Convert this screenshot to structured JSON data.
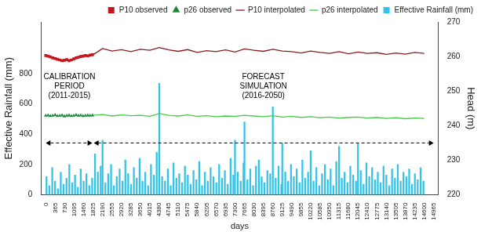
{
  "chart_data": {
    "type": "bar",
    "x_label": "days",
    "y_label": "Effective Rainfall (mm)",
    "y2_label": "Head (m)",
    "xlim": [
      0,
      14965
    ],
    "xticks": [
      0,
      365,
      730,
      1095,
      1460,
      1825,
      2190,
      2555,
      2920,
      3285,
      3650,
      4015,
      4380,
      4745,
      5110,
      5475,
      5840,
      6205,
      6570,
      6935,
      7300,
      7665,
      8030,
      8395,
      8760,
      9125,
      9490,
      9855,
      10220,
      10585,
      10950,
      11315,
      11680,
      12045,
      12410,
      12775,
      13140,
      13505,
      13870,
      14235,
      14600,
      14965
    ],
    "ylim": [
      0,
      1140
    ],
    "yticks": [
      0,
      200,
      400,
      600,
      800
    ],
    "y2lim": [
      220,
      270
    ],
    "y2ticks": [
      220,
      230,
      240,
      250,
      260,
      270
    ],
    "grid": false,
    "legend": "top-right",
    "annotations": [
      {
        "text": [
          "CALIBRATION",
          "PERIOD",
          "(2011-2015)"
        ]
      },
      {
        "text": [
          "FORECAST",
          "SIMULATION",
          "(2016-2050)"
        ]
      }
    ],
    "series": [
      {
        "name": "P10 interpolated",
        "type": "line",
        "color": "#8b1a1a",
        "axis": "y2",
        "line_style": "solid",
        "x": [
          1825,
          2190,
          2555,
          2920,
          3285,
          3650,
          4015,
          4380,
          4745,
          5110,
          5475,
          5840,
          6205,
          6570,
          6935,
          7300,
          7665,
          8030,
          8395,
          8760,
          9125,
          9490,
          9855,
          10220,
          10585,
          10950,
          11315,
          11680,
          12045,
          12410,
          12775,
          13140,
          13505,
          13870,
          14235,
          14600
        ],
        "values": [
          260.5,
          262.3,
          261.6,
          262.0,
          261.4,
          262.1,
          261.8,
          262.6,
          261.9,
          261.5,
          262.0,
          261.2,
          261.7,
          261.4,
          261.9,
          261.3,
          262.2,
          261.8,
          261.5,
          262.1,
          261.6,
          261.4,
          261.0,
          261.6,
          261.2,
          260.9,
          261.4,
          260.8,
          261.3,
          260.9,
          261.1,
          260.6,
          261.0,
          260.7,
          261.2,
          260.9
        ]
      },
      {
        "name": "p26 interpolated",
        "type": "line",
        "color": "#44cc44",
        "axis": "y2",
        "line_style": "solid",
        "x": [
          1825,
          2190,
          2555,
          2920,
          3285,
          3650,
          4015,
          4380,
          4745,
          5110,
          5475,
          5840,
          6205,
          6570,
          6935,
          7300,
          7665,
          8030,
          8395,
          8760,
          9125,
          9490,
          9855,
          10220,
          10585,
          10950,
          11315,
          11680,
          12045,
          12410,
          12775,
          13140,
          13505,
          13870,
          14235,
          14600
        ],
        "values": [
          243.0,
          243.2,
          242.8,
          243.1,
          242.9,
          243.0,
          242.7,
          243.5,
          243.0,
          242.8,
          243.1,
          242.7,
          242.9,
          242.6,
          242.8,
          242.7,
          243.0,
          242.8,
          242.6,
          242.9,
          242.5,
          242.7,
          242.4,
          242.6,
          242.3,
          242.5,
          242.2,
          242.4,
          242.5,
          242.2,
          242.4,
          242.1,
          242.3,
          242.0,
          242.2,
          242.1
        ]
      },
      {
        "name": "Effective Rainfall (mm)",
        "type": "bar",
        "color": "#33c3e8",
        "x": [
          30,
          140,
          250,
          360,
          470,
          580,
          690,
          800,
          910,
          1020,
          1130,
          1240,
          1350,
          1460,
          1570,
          1680,
          1790,
          1900,
          2010,
          2120,
          2190,
          2300,
          2410,
          2520,
          2630,
          2740,
          2850,
          2960,
          3070,
          3180,
          3290,
          3400,
          3510,
          3620,
          3730,
          3840,
          3950,
          4060,
          4170,
          4280,
          4380,
          4490,
          4600,
          4710,
          4820,
          4930,
          5040,
          5150,
          5260,
          5370,
          5480,
          5590,
          5700,
          5810,
          5920,
          6030,
          6140,
          6250,
          6360,
          6470,
          6580,
          6690,
          6800,
          6910,
          7020,
          7130,
          7240,
          7300,
          7410,
          7520,
          7630,
          7665,
          7780,
          7890,
          8000,
          8110,
          8220,
          8330,
          8440,
          8550,
          8660,
          8760,
          8870,
          8980,
          9090,
          9125,
          9240,
          9350,
          9460,
          9570,
          9680,
          9790,
          9900,
          10010,
          10120,
          10220,
          10330,
          10440,
          10550,
          10660,
          10770,
          10880,
          10990,
          11100,
          11210,
          11315,
          11420,
          11530,
          11640,
          11750,
          11860,
          11970,
          12045,
          12150,
          12260,
          12370,
          12480,
          12590,
          12700,
          12810,
          12920,
          13030,
          13140,
          13250,
          13360,
          13470,
          13580,
          13690,
          13800,
          13910,
          14020,
          14130,
          14240,
          14350,
          14460,
          14570
        ],
        "values": [
          120,
          60,
          180,
          90,
          40,
          150,
          70,
          110,
          200,
          80,
          130,
          50,
          170,
          90,
          140,
          60,
          110,
          270,
          150,
          190,
          360,
          80,
          140,
          200,
          60,
          120,
          170,
          90,
          230,
          140,
          70,
          180,
          110,
          240,
          90,
          150,
          60,
          200,
          130,
          280,
          735,
          120,
          90,
          170,
          60,
          210,
          110,
          140,
          80,
          190,
          130,
          70,
          160,
          100,
          220,
          60,
          150,
          90,
          180,
          120,
          80,
          200,
          110,
          160,
          70,
          240,
          130,
          360,
          150,
          90,
          210,
          480,
          100,
          170,
          60,
          190,
          230,
          120,
          80,
          160,
          140,
          580,
          110,
          190,
          70,
          340,
          150,
          90,
          200,
          120,
          170,
          80,
          230,
          110,
          150,
          290,
          90,
          180,
          60,
          140,
          200,
          100,
          170,
          60,
          220,
          320,
          110,
          150,
          80,
          190,
          130,
          90,
          340,
          160,
          70,
          210,
          120,
          180,
          100,
          150,
          80,
          190,
          130,
          60,
          170,
          110,
          200,
          90,
          150,
          120,
          170,
          70,
          140,
          100,
          180,
          90
        ]
      },
      {
        "name": "P10 observed",
        "type": "scatter",
        "color": "#c8141c",
        "axis": "y2",
        "marker": "square",
        "x": [
          0,
          90,
          180,
          270,
          360,
          450,
          540,
          630,
          720,
          810,
          900,
          990,
          1080,
          1170,
          1260,
          1350,
          1440,
          1530,
          1620,
          1710,
          1800
        ],
        "values": [
          260.3,
          260.1,
          259.9,
          259.6,
          259.4,
          259.2,
          259.0,
          258.8,
          258.9,
          259.1,
          258.8,
          259.0,
          259.3,
          259.6,
          259.8,
          260.0,
          260.1,
          260.3,
          260.2,
          260.4,
          260.5
        ]
      },
      {
        "name": "p26 observed",
        "type": "scatter",
        "color": "#1a8a3a",
        "axis": "y2",
        "marker": "triangle",
        "x": [
          0,
          90,
          180,
          270,
          360,
          450,
          540,
          630,
          720,
          810,
          900,
          990,
          1080,
          1170,
          1260,
          1350,
          1440,
          1530,
          1620,
          1710,
          1800
        ],
        "values": [
          242.9,
          243.0,
          242.8,
          242.9,
          243.1,
          242.8,
          242.9,
          243.0,
          242.7,
          242.9,
          243.0,
          242.8,
          242.9,
          243.1,
          242.9,
          243.0,
          242.8,
          242.9,
          243.0,
          242.9,
          243.0
        ]
      }
    ]
  }
}
